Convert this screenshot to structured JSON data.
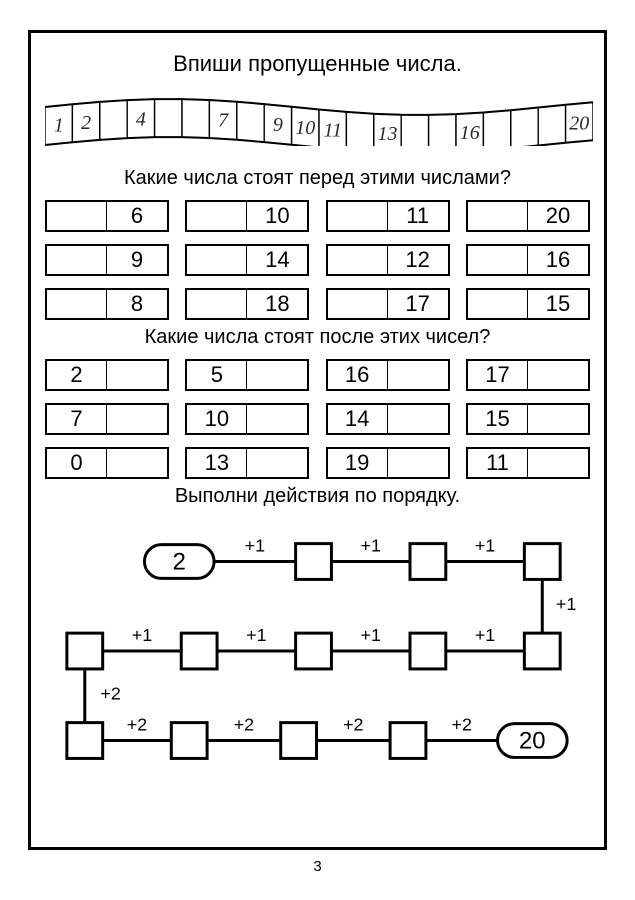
{
  "title": "Впиши пропущенные числа.",
  "ribbon": {
    "cells": [
      {
        "val": "1",
        "filled": true
      },
      {
        "val": "2",
        "filled": true
      },
      {
        "val": "",
        "filled": false
      },
      {
        "val": "4",
        "filled": true
      },
      {
        "val": "",
        "filled": false
      },
      {
        "val": "",
        "filled": false
      },
      {
        "val": "7",
        "filled": true
      },
      {
        "val": "",
        "filled": false
      },
      {
        "val": "9",
        "filled": true
      },
      {
        "val": "10",
        "filled": true
      },
      {
        "val": "11",
        "filled": true
      },
      {
        "val": "",
        "filled": false
      },
      {
        "val": "13",
        "filled": true
      },
      {
        "val": "",
        "filled": false
      },
      {
        "val": "",
        "filled": false
      },
      {
        "val": "16",
        "filled": true
      },
      {
        "val": "",
        "filled": false
      },
      {
        "val": "",
        "filled": false
      },
      {
        "val": "",
        "filled": false
      },
      {
        "val": "20",
        "filled": true
      }
    ],
    "stroke": "#000000",
    "handwriting_color": "#2a2a2a"
  },
  "before": {
    "heading": "Какие числа стоят перед этими числами?",
    "rows": [
      [
        {
          "l": "",
          "r": "6"
        },
        {
          "l": "",
          "r": "10"
        },
        {
          "l": "",
          "r": "11"
        },
        {
          "l": "",
          "r": "20"
        }
      ],
      [
        {
          "l": "",
          "r": "9"
        },
        {
          "l": "",
          "r": "14"
        },
        {
          "l": "",
          "r": "12"
        },
        {
          "l": "",
          "r": "16"
        }
      ],
      [
        {
          "l": "",
          "r": "8"
        },
        {
          "l": "",
          "r": "18"
        },
        {
          "l": "",
          "r": "17"
        },
        {
          "l": "",
          "r": "15"
        }
      ]
    ]
  },
  "after": {
    "heading": "Какие числа стоят после этих чисел?",
    "rows": [
      [
        {
          "l": "2",
          "r": ""
        },
        {
          "l": "5",
          "r": ""
        },
        {
          "l": "16",
          "r": ""
        },
        {
          "l": "17",
          "r": ""
        }
      ],
      [
        {
          "l": "7",
          "r": ""
        },
        {
          "l": "10",
          "r": ""
        },
        {
          "l": "14",
          "r": ""
        },
        {
          "l": "15",
          "r": ""
        }
      ],
      [
        {
          "l": "0",
          "r": ""
        },
        {
          "l": "13",
          "r": ""
        },
        {
          "l": "19",
          "r": ""
        },
        {
          "l": "11",
          "r": ""
        }
      ]
    ]
  },
  "chain": {
    "heading": "Выполни действия по порядку.",
    "start_value": "2",
    "end_value": "20",
    "ops_row1": [
      "+1",
      "+1",
      "+1"
    ],
    "ops_down1": "+1",
    "ops_row2": [
      "+1",
      "+1",
      "+1",
      "+1"
    ],
    "ops_down2": "+2",
    "ops_row3": [
      "+2",
      "+2",
      "+2",
      "+2"
    ],
    "box_size": 36,
    "pill_w": 70,
    "pill_h": 34,
    "line_w": 3,
    "colors": {
      "stroke": "#000000",
      "bg": "#ffffff"
    }
  },
  "page_number": "3",
  "style": {
    "border_color": "#000000",
    "background": "#ffffff",
    "font_main": "Arial",
    "title_fontsize": 22,
    "subtitle_fontsize": 20,
    "cell_fontsize": 22
  }
}
